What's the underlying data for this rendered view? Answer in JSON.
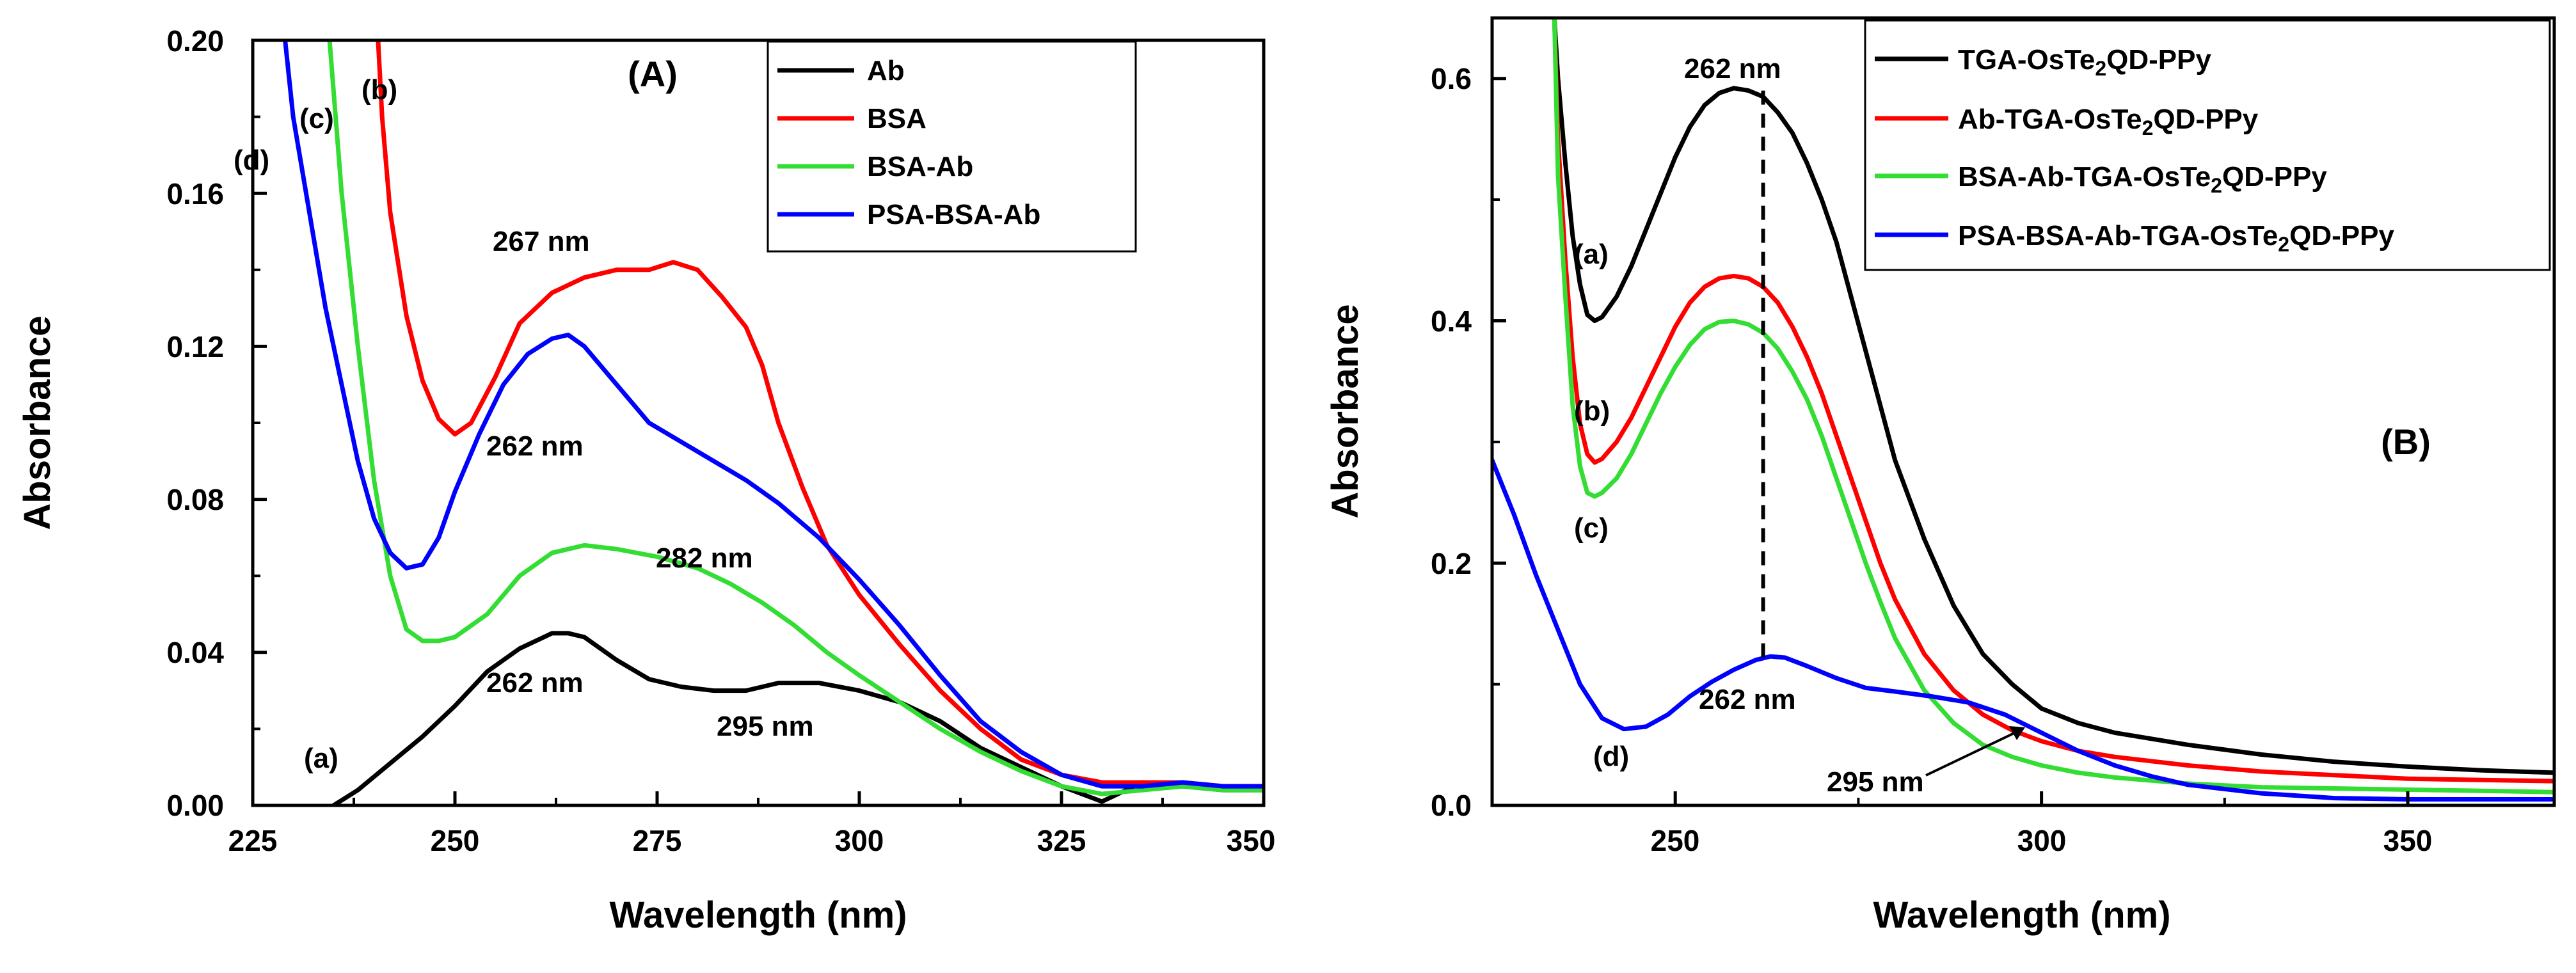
{
  "chart_data": [
    {
      "type": "line",
      "panel": "(A)",
      "xlabel": "Wavelength (nm)",
      "ylabel": "Absorbance",
      "xlim": [
        225,
        350
      ],
      "ylim": [
        0,
        0.2
      ],
      "xticks": [
        225,
        250,
        275,
        300,
        325,
        350
      ],
      "xtick_labels": [
        "225",
        "250",
        "275",
        "300",
        "325",
        "350"
      ],
      "yticks": [
        0,
        0.04,
        0.08,
        0.12,
        0.16,
        0.2
      ],
      "ytick_labels": [
        "0.00",
        "0.04",
        "0.08",
        "0.12",
        "0.16",
        "0.20"
      ],
      "legend_position": "top-right",
      "series": [
        {
          "name": "Ab",
          "label": "(a)",
          "color": "#000000",
          "x": [
            235,
            238,
            242,
            246,
            250,
            254,
            258,
            262,
            264,
            266,
            270,
            274,
            278,
            282,
            286,
            290,
            295,
            300,
            305,
            310,
            315,
            320,
            325,
            330,
            335,
            340,
            345,
            350
          ],
          "y": [
            0.0,
            0.004,
            0.011,
            0.018,
            0.026,
            0.035,
            0.041,
            0.045,
            0.045,
            0.044,
            0.038,
            0.033,
            0.031,
            0.03,
            0.03,
            0.032,
            0.032,
            0.03,
            0.027,
            0.022,
            0.015,
            0.01,
            0.005,
            0.001,
            0.006,
            0.005,
            0.004,
            0.004
          ]
        },
        {
          "name": "BSA",
          "label": "(b)",
          "color": "#ff0000",
          "x": [
            240.5,
            241,
            242,
            244,
            246,
            248,
            250,
            252,
            255,
            258,
            262,
            266,
            270,
            274,
            277,
            280,
            283,
            286,
            288,
            290,
            293,
            296,
            300,
            305,
            310,
            315,
            320,
            325,
            330,
            335,
            340,
            345,
            350
          ],
          "y": [
            0.2,
            0.18,
            0.155,
            0.128,
            0.111,
            0.101,
            0.097,
            0.1,
            0.112,
            0.126,
            0.134,
            0.138,
            0.14,
            0.14,
            0.142,
            0.14,
            0.133,
            0.125,
            0.115,
            0.1,
            0.083,
            0.068,
            0.055,
            0.042,
            0.03,
            0.02,
            0.012,
            0.008,
            0.006,
            0.006,
            0.006,
            0.005,
            0.005
          ],
          "annotations": [
            {
              "text": "267 nm",
              "x": 267,
              "y": 0.14
            }
          ]
        },
        {
          "name": "BSA-Ab",
          "label": "(c)",
          "color": "#33dd33",
          "x": [
            234.5,
            236,
            238,
            240,
            242,
            244,
            246,
            248,
            250,
            254,
            258,
            262,
            266,
            270,
            275,
            280,
            284,
            288,
            292,
            296,
            300,
            305,
            310,
            315,
            320,
            325,
            330,
            335,
            340,
            345,
            350
          ],
          "y": [
            0.2,
            0.16,
            0.12,
            0.085,
            0.06,
            0.046,
            0.043,
            0.043,
            0.044,
            0.05,
            0.06,
            0.066,
            0.068,
            0.067,
            0.065,
            0.062,
            0.058,
            0.053,
            0.047,
            0.04,
            0.034,
            0.027,
            0.02,
            0.014,
            0.009,
            0.005,
            0.003,
            0.004,
            0.005,
            0.004,
            0.004
          ],
          "annotations": [
            {
              "text": "282 nm",
              "x": 282,
              "y": 0.062
            }
          ]
        },
        {
          "name": "PSA-BSA-Ab",
          "label": "(d)",
          "color": "#0000ff",
          "x": [
            229,
            230,
            232,
            234,
            236,
            238,
            240,
            242,
            244,
            246,
            248,
            250,
            253,
            256,
            259,
            262,
            264,
            266,
            270,
            274,
            278,
            282,
            286,
            290,
            295,
            300,
            305,
            310,
            315,
            320,
            325,
            330,
            335,
            340,
            345,
            350
          ],
          "y": [
            0.2,
            0.18,
            0.155,
            0.13,
            0.11,
            0.09,
            0.075,
            0.066,
            0.062,
            0.063,
            0.07,
            0.082,
            0.097,
            0.11,
            0.118,
            0.122,
            0.123,
            0.12,
            0.11,
            0.1,
            0.095,
            0.09,
            0.085,
            0.079,
            0.07,
            0.059,
            0.047,
            0.034,
            0.022,
            0.014,
            0.008,
            0.005,
            0.005,
            0.006,
            0.005,
            0.005
          ],
          "annotations": [
            {
              "text": "262 nm",
              "x": 262,
              "y": 0.123
            }
          ]
        }
      ],
      "extra_annotations": [
        {
          "text": "262 nm",
          "x": 262,
          "y": 0.045
        },
        {
          "text": "295 nm",
          "x": 295,
          "y": 0.032
        }
      ]
    },
    {
      "type": "line",
      "panel": "(B)",
      "xlabel": "Wavelength (nm)",
      "ylabel": "Absorbance",
      "xlim": [
        225,
        370
      ],
      "ylim": [
        0,
        0.65
      ],
      "xticks": [
        250,
        300,
        350
      ],
      "xtick_labels": [
        "250",
        "300",
        "350"
      ],
      "yticks": [
        0,
        0.2,
        0.4,
        0.6
      ],
      "ytick_labels": [
        "0.0",
        "0.2",
        "0.4",
        "0.6"
      ],
      "legend_position": "top-right",
      "peak_marker": {
        "text": "262 nm",
        "x": 262,
        "y_from": 0.12,
        "y_to": 0.59
      },
      "series": [
        {
          "name": "TGA-OsTe2QD-PPy",
          "label": "(a)",
          "color": "#000000",
          "x": [
            233.5,
            234,
            235,
            236,
            237,
            238,
            239,
            240,
            242,
            244,
            246,
            248,
            250,
            252,
            254,
            256,
            258,
            260,
            262,
            264,
            266,
            268,
            270,
            272,
            274,
            276,
            278,
            280,
            284,
            288,
            292,
            296,
            300,
            305,
            310,
            320,
            330,
            340,
            350,
            360,
            370
          ],
          "y": [
            0.65,
            0.6,
            0.53,
            0.47,
            0.43,
            0.405,
            0.4,
            0.403,
            0.42,
            0.445,
            0.475,
            0.505,
            0.535,
            0.56,
            0.578,
            0.588,
            0.592,
            0.59,
            0.585,
            0.572,
            0.555,
            0.53,
            0.5,
            0.465,
            0.42,
            0.375,
            0.33,
            0.285,
            0.22,
            0.165,
            0.125,
            0.1,
            0.08,
            0.068,
            0.06,
            0.05,
            0.042,
            0.036,
            0.032,
            0.029,
            0.027
          ]
        },
        {
          "name": "Ab-TGA-OsTe2QD-PPy",
          "label": "(b)",
          "color": "#ff0000",
          "x": [
            233.5,
            234,
            235,
            236,
            237,
            238,
            239,
            240,
            242,
            244,
            246,
            248,
            250,
            252,
            254,
            256,
            258,
            260,
            262,
            264,
            266,
            268,
            270,
            272,
            274,
            276,
            278,
            280,
            284,
            288,
            292,
            296,
            300,
            305,
            310,
            320,
            330,
            340,
            350,
            360,
            370
          ],
          "y": [
            0.65,
            0.55,
            0.45,
            0.37,
            0.315,
            0.29,
            0.283,
            0.286,
            0.3,
            0.32,
            0.345,
            0.37,
            0.395,
            0.415,
            0.428,
            0.435,
            0.437,
            0.435,
            0.428,
            0.415,
            0.395,
            0.37,
            0.34,
            0.305,
            0.27,
            0.235,
            0.2,
            0.17,
            0.125,
            0.095,
            0.075,
            0.062,
            0.053,
            0.045,
            0.04,
            0.033,
            0.028,
            0.025,
            0.022,
            0.021,
            0.02
          ]
        },
        {
          "name": "BSA-Ab-TGA-OsTe2QD-PPy",
          "label": "(c)",
          "color": "#33dd33",
          "x": [
            233.5,
            234,
            235,
            236,
            237,
            238,
            239,
            240,
            242,
            244,
            246,
            248,
            250,
            252,
            254,
            256,
            258,
            260,
            262,
            264,
            266,
            268,
            270,
            272,
            274,
            276,
            278,
            280,
            284,
            288,
            292,
            296,
            300,
            305,
            310,
            320,
            330,
            340,
            350,
            360,
            370
          ],
          "y": [
            0.65,
            0.52,
            0.42,
            0.33,
            0.28,
            0.258,
            0.255,
            0.258,
            0.27,
            0.29,
            0.315,
            0.34,
            0.362,
            0.38,
            0.393,
            0.399,
            0.4,
            0.397,
            0.39,
            0.377,
            0.358,
            0.335,
            0.305,
            0.27,
            0.235,
            0.2,
            0.168,
            0.138,
            0.095,
            0.068,
            0.05,
            0.04,
            0.033,
            0.027,
            0.023,
            0.018,
            0.015,
            0.014,
            0.013,
            0.012,
            0.011
          ]
        },
        {
          "name": "PSA-BSA-Ab-TGA-OsTe2QD-PPy",
          "label": "(d)",
          "color": "#0000ff",
          "x": [
            225,
            228,
            231,
            234,
            237,
            240,
            243,
            246,
            249,
            252,
            255,
            258,
            261,
            263,
            265,
            268,
            272,
            276,
            280,
            285,
            290,
            295,
            300,
            305,
            310,
            315,
            320,
            330,
            340,
            350,
            360,
            370
          ],
          "y": [
            0.285,
            0.24,
            0.19,
            0.145,
            0.1,
            0.072,
            0.063,
            0.065,
            0.075,
            0.09,
            0.102,
            0.112,
            0.12,
            0.123,
            0.122,
            0.115,
            0.105,
            0.097,
            0.094,
            0.09,
            0.085,
            0.075,
            0.06,
            0.045,
            0.033,
            0.024,
            0.017,
            0.01,
            0.006,
            0.005,
            0.005,
            0.005
          ]
        }
      ],
      "extra_annotations": [
        {
          "text": "295 nm",
          "x": 295,
          "y": 0.078
        }
      ]
    }
  ]
}
